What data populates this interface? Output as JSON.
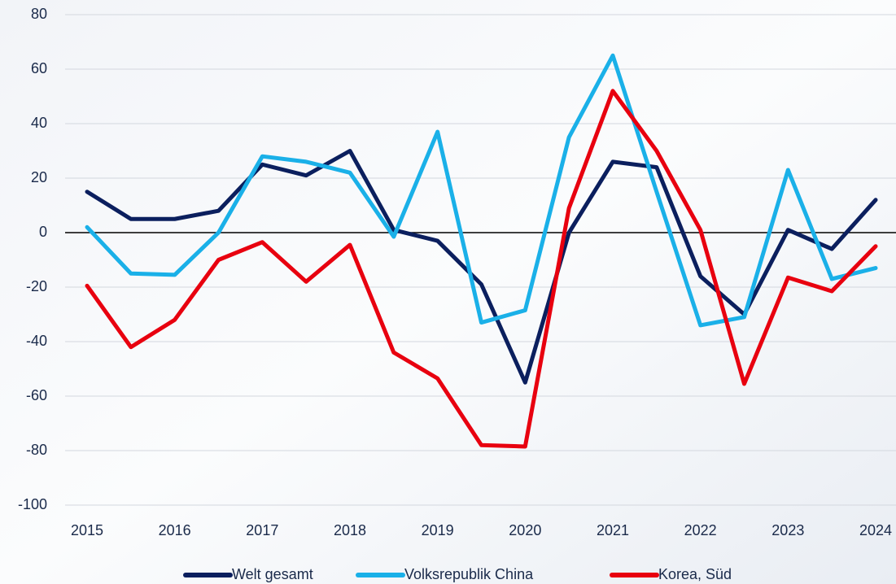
{
  "chart_data": {
    "type": "line",
    "categories": [
      "2015",
      null,
      "2016",
      null,
      "2017",
      null,
      "2018",
      null,
      "2019",
      null,
      "2020",
      null,
      "2021",
      null,
      "2022",
      null,
      "2023",
      null,
      "2024"
    ],
    "series": [
      {
        "name": "Welt gesamt",
        "color": "#0b1f5e",
        "values": [
          15,
          5,
          5,
          8,
          25,
          21,
          30,
          1,
          -3,
          -19,
          -55,
          0,
          26,
          24,
          -16,
          -30,
          1,
          -6,
          12
        ]
      },
      {
        "name": "Volksrepublik China",
        "color": "#1ab0e8",
        "values": [
          2,
          -15,
          -15.5,
          0,
          28,
          26,
          22,
          -1.5,
          37,
          -33,
          -28.5,
          35,
          65,
          15,
          -34,
          -31,
          23,
          -17,
          -13
        ]
      },
      {
        "name": "Korea, Süd",
        "color": "#e8000f",
        "values": [
          -19.5,
          -42,
          -32,
          -10,
          -3.5,
          -18,
          -4.5,
          -44,
          -53.5,
          -78,
          -78.5,
          9,
          52,
          30,
          1,
          -55.5,
          -16.5,
          -21.5,
          -5
        ]
      }
    ],
    "ylim": [
      -100,
      80
    ],
    "yticks": [
      -100,
      -80,
      -60,
      -40,
      -20,
      0,
      20,
      40,
      60,
      80
    ],
    "grid": true,
    "legend": "bottom"
  }
}
